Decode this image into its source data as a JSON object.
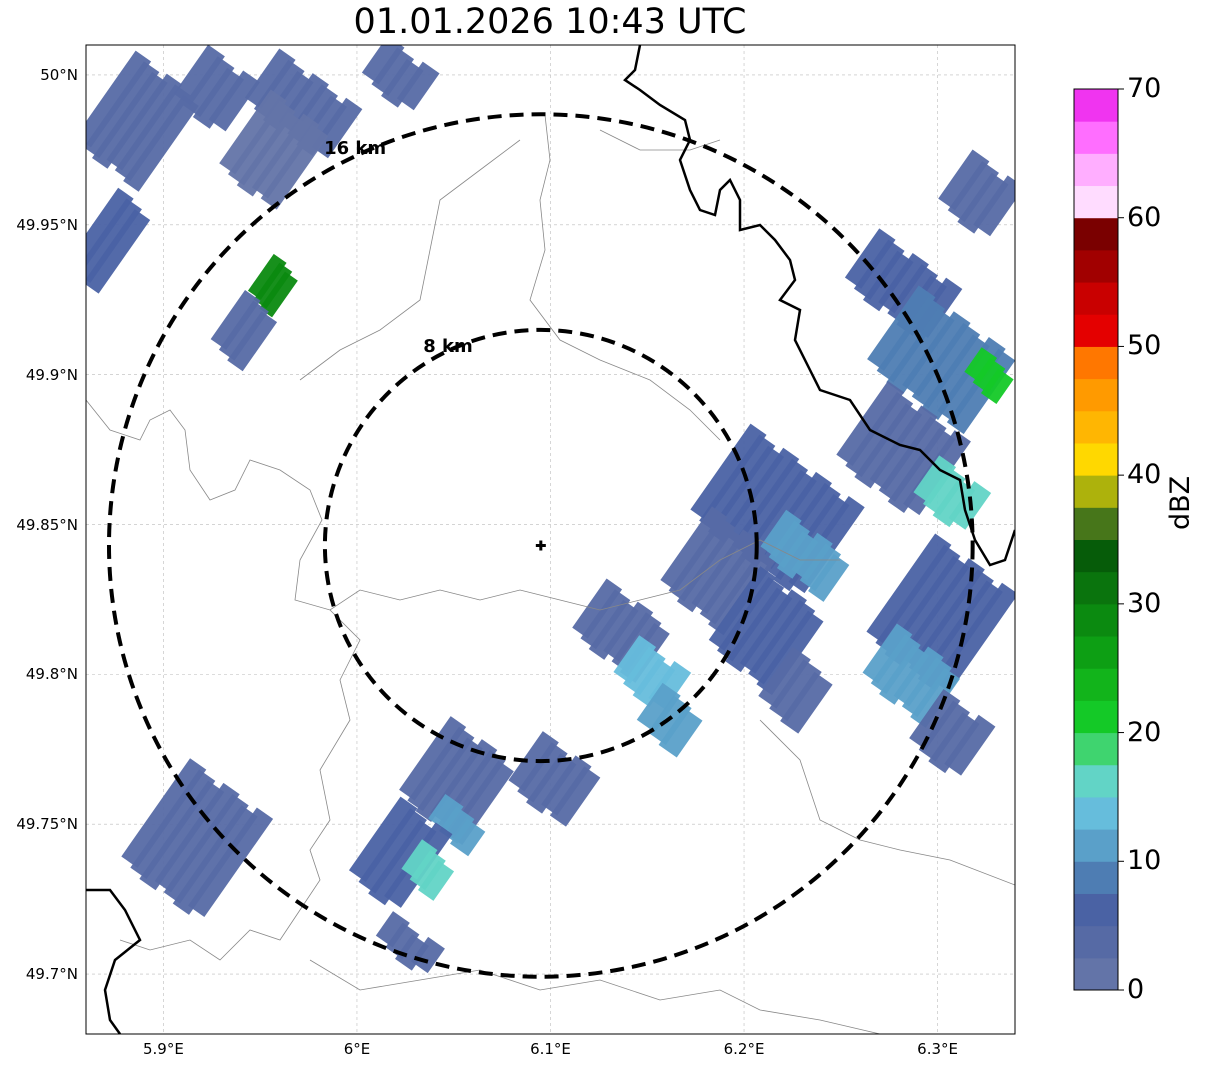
{
  "title": "01.01.2026 10:43 UTC",
  "map": {
    "lon_range": [
      5.86,
      6.34
    ],
    "lat_range": [
      49.68,
      50.01
    ],
    "x_ticks": [
      "5.9°E",
      "6°E",
      "6.1°E",
      "6.2°E",
      "6.3°E"
    ],
    "x_tick_values": [
      5.9,
      6.0,
      6.1,
      6.2,
      6.3
    ],
    "y_ticks": [
      "49.7°N",
      "49.75°N",
      "49.8°N",
      "49.85°N",
      "49.9°N",
      "49.95°N",
      "50°N"
    ],
    "y_tick_values": [
      49.7,
      49.75,
      49.8,
      49.85,
      49.9,
      49.95,
      50.0
    ],
    "gridlines": true,
    "radar_site": {
      "lon": 6.095,
      "lat": 49.843
    },
    "range_rings": [
      {
        "label": "8 km",
        "radius_km": 8
      },
      {
        "label": "16 km",
        "radius_km": 16
      }
    ],
    "ring_style": "dashed black"
  },
  "colorbar": {
    "title": "dBZ",
    "ticks": [
      "0",
      "10",
      "20",
      "30",
      "40",
      "50",
      "60",
      "70"
    ],
    "colors": [
      "#6374a8",
      "#566aa5",
      "#4a62a4",
      "#4e7db3",
      "#5aa0c9",
      "#66bddc",
      "#62d4c6",
      "#3fd46f",
      "#14c927",
      "#12b41b",
      "#0d9f14",
      "#0b8a10",
      "#0a740d",
      "#065c09",
      "#47761a",
      "#adb20c",
      "#ffd800",
      "#ffb602",
      "#ff9a00",
      "#ff7700",
      "#e40000",
      "#c90000",
      "#a10000",
      "#7a0000",
      "#ffdcff",
      "#ffaeff",
      "#ff6eff",
      "#f034f0"
    ]
  },
  "echoes": [
    {
      "lon": 5.885,
      "lat": 49.985,
      "w": 0.04,
      "h": 0.035,
      "dbz": 3
    },
    {
      "lon": 5.925,
      "lat": 49.995,
      "w": 0.03,
      "h": 0.02,
      "dbz": 3
    },
    {
      "lon": 5.97,
      "lat": 49.99,
      "w": 0.05,
      "h": 0.02,
      "dbz": 4
    },
    {
      "lon": 5.955,
      "lat": 49.975,
      "w": 0.035,
      "h": 0.03,
      "dbz": 2
    },
    {
      "lon": 6.02,
      "lat": 50.0,
      "w": 0.03,
      "h": 0.015,
      "dbz": 4
    },
    {
      "lon": 5.87,
      "lat": 49.945,
      "w": 0.02,
      "h": 0.03,
      "dbz": 5
    },
    {
      "lon": 5.955,
      "lat": 49.93,
      "w": 0.015,
      "h": 0.015,
      "dbz": 28
    },
    {
      "lon": 5.94,
      "lat": 49.915,
      "w": 0.02,
      "h": 0.02,
      "dbz": 3
    },
    {
      "lon": 6.32,
      "lat": 49.96,
      "w": 0.03,
      "h": 0.02,
      "dbz": 4
    },
    {
      "lon": 6.28,
      "lat": 49.93,
      "w": 0.05,
      "h": 0.02,
      "dbz": 5
    },
    {
      "lon": 6.3,
      "lat": 49.905,
      "w": 0.06,
      "h": 0.03,
      "dbz": 8
    },
    {
      "lon": 6.325,
      "lat": 49.9,
      "w": 0.02,
      "h": 0.01,
      "dbz": 20
    },
    {
      "lon": 6.28,
      "lat": 49.875,
      "w": 0.05,
      "h": 0.03,
      "dbz": 4
    },
    {
      "lon": 6.305,
      "lat": 49.86,
      "w": 0.03,
      "h": 0.015,
      "dbz": 16
    },
    {
      "lon": 6.215,
      "lat": 49.855,
      "w": 0.07,
      "h": 0.035,
      "dbz": 5
    },
    {
      "lon": 6.23,
      "lat": 49.84,
      "w": 0.04,
      "h": 0.015,
      "dbz": 12
    },
    {
      "lon": 6.185,
      "lat": 49.835,
      "w": 0.04,
      "h": 0.03,
      "dbz": 3
    },
    {
      "lon": 6.21,
      "lat": 49.815,
      "w": 0.04,
      "h": 0.03,
      "dbz": 6
    },
    {
      "lon": 6.225,
      "lat": 49.795,
      "w": 0.025,
      "h": 0.02,
      "dbz": 3
    },
    {
      "lon": 6.3,
      "lat": 49.82,
      "w": 0.05,
      "h": 0.04,
      "dbz": 6
    },
    {
      "lon": 6.285,
      "lat": 49.8,
      "w": 0.04,
      "h": 0.02,
      "dbz": 12
    },
    {
      "lon": 6.305,
      "lat": 49.78,
      "w": 0.03,
      "h": 0.02,
      "dbz": 4
    },
    {
      "lon": 6.135,
      "lat": 49.815,
      "w": 0.04,
      "h": 0.02,
      "dbz": 4
    },
    {
      "lon": 6.15,
      "lat": 49.8,
      "w": 0.03,
      "h": 0.015,
      "dbz": 14
    },
    {
      "lon": 6.16,
      "lat": 49.785,
      "w": 0.025,
      "h": 0.015,
      "dbz": 10
    },
    {
      "lon": 6.05,
      "lat": 49.765,
      "w": 0.04,
      "h": 0.03,
      "dbz": 4
    },
    {
      "lon": 6.05,
      "lat": 49.75,
      "w": 0.025,
      "h": 0.01,
      "dbz": 12
    },
    {
      "lon": 6.02,
      "lat": 49.74,
      "w": 0.03,
      "h": 0.03,
      "dbz": 5
    },
    {
      "lon": 6.035,
      "lat": 49.735,
      "w": 0.02,
      "h": 0.012,
      "dbz": 16
    },
    {
      "lon": 6.1,
      "lat": 49.765,
      "w": 0.035,
      "h": 0.02,
      "dbz": 3
    },
    {
      "lon": 5.915,
      "lat": 49.745,
      "w": 0.05,
      "h": 0.04,
      "dbz": 4
    },
    {
      "lon": 6.025,
      "lat": 49.71,
      "w": 0.03,
      "h": 0.01,
      "dbz": 4
    }
  ]
}
